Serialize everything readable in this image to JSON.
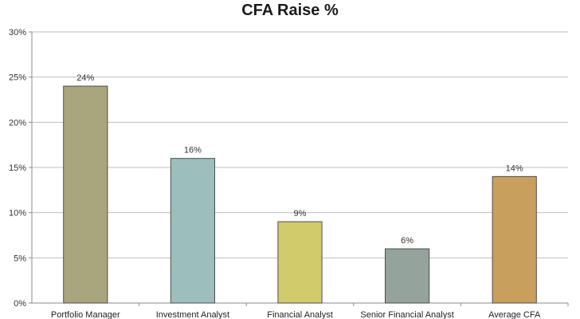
{
  "chart_data": {
    "type": "bar",
    "title": "CFA Raise %",
    "xlabel": "",
    "ylabel": "",
    "categories": [
      "Portfolio Manager",
      "Investment Analyst",
      "Financial Analyst",
      "Senior Financial Analyst",
      "Average CFA"
    ],
    "values": [
      24,
      16,
      9,
      6,
      14
    ],
    "data_labels": [
      "24%",
      "16%",
      "9%",
      "6%",
      "14%"
    ],
    "colors": [
      "#a9a57c",
      "#9cbebd",
      "#d2cb6c",
      "#95a39d",
      "#c89f5d"
    ],
    "ylim": [
      0,
      30
    ],
    "yticks": [
      0,
      5,
      10,
      15,
      20,
      25,
      30
    ],
    "ytick_labels": [
      "0%",
      "5%",
      "10%",
      "15%",
      "20%",
      "25%",
      "30%"
    ],
    "grid": true,
    "legend": "none"
  }
}
